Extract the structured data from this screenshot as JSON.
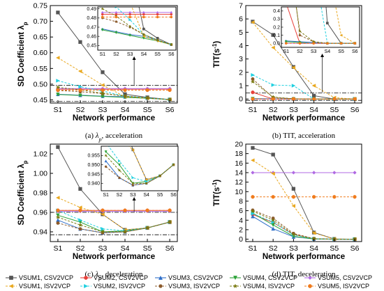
{
  "series_styles": [
    {
      "name": "VSUM1, CSV2VCP",
      "color": "#555555",
      "marker": "square",
      "dash": false
    },
    {
      "name": "VSUM2, CSV2VCP",
      "color": "#e8413b",
      "marker": "circle",
      "dash": false
    },
    {
      "name": "VSUM3, CSV2VCP",
      "color": "#2f6fc9",
      "marker": "triangle-up",
      "dash": false
    },
    {
      "name": "VSUM4, CSV2VCP",
      "color": "#2ea33a",
      "marker": "triangle-down",
      "dash": false
    },
    {
      "name": "VSUM5, CSV2VCP",
      "color": "#b06ae3",
      "marker": "diamond",
      "dash": false
    },
    {
      "name": "VSUM1, ISV2VCP",
      "color": "#e9a81e",
      "marker": "triangle-left",
      "dash": true
    },
    {
      "name": "VSUM2, ISV2VCP",
      "color": "#1fd0e0",
      "marker": "triangle-right",
      "dash": true
    },
    {
      "name": "VSUM3, ISV2VCP",
      "color": "#8b5a2b",
      "marker": "hexagon",
      "dash": true
    },
    {
      "name": "VSUM4, ISV2VCP",
      "color": "#7a7a10",
      "marker": "star",
      "dash": true
    },
    {
      "name": "VSUM5, ISV2VCP",
      "color": "#f07b1c",
      "marker": "circle",
      "dash": true
    }
  ],
  "chart_data": [
    {
      "type": "line",
      "caption_letter": "(a)",
      "caption_symbol": "λ",
      "caption_sub": "p",
      "caption_text": ", acceleration",
      "ylabel": "SD Coefficient λ",
      "ylabel_sub": "p",
      "xlabel": "Network performance",
      "categories": [
        "S1",
        "S2",
        "S3",
        "S4",
        "S5",
        "S6"
      ],
      "ylim": [
        0.44,
        0.75
      ],
      "yticks": [
        "0.45",
        "0.50",
        "0.55",
        "0.60",
        "0.65",
        "0.70",
        "0.75"
      ],
      "series": [
        [
          0.728,
          0.634,
          0.538,
          0.468,
          0.458,
          0.451
        ],
        [
          0.484,
          0.484,
          0.484,
          0.484,
          0.484,
          0.484
        ],
        [
          0.468,
          0.465,
          0.462,
          0.46,
          0.456,
          0.451
        ],
        [
          0.467,
          0.464,
          0.461,
          0.458,
          0.455,
          0.451
        ],
        [
          0.486,
          0.486,
          0.486,
          0.486,
          0.486,
          0.486
        ],
        [
          0.584,
          0.541,
          0.497,
          0.46,
          0.455,
          0.451
        ],
        [
          0.511,
          0.492,
          0.478,
          0.462,
          0.456,
          0.451
        ],
        [
          0.48,
          0.476,
          0.47,
          0.462,
          0.456,
          0.451
        ],
        [
          0.49,
          0.482,
          0.471,
          0.462,
          0.456,
          0.451
        ],
        [
          0.481,
          0.481,
          0.481,
          0.481,
          0.481,
          0.481
        ]
      ],
      "reference_lines": [
        0.496,
        0.445
      ],
      "inset": {
        "ylim": [
          0.445,
          0.492
        ],
        "yticks": [
          "0.45",
          "0.46",
          "0.47",
          "0.48",
          "0.49"
        ],
        "categories": [
          "S1",
          "S2",
          "S3",
          "S4",
          "S5",
          "S6"
        ]
      }
    },
    {
      "type": "line",
      "caption_letter": "(b)",
      "caption_text": "TIT, acceleration",
      "ylabel": "TIT(s",
      "ylabel_sup": "-1",
      "ylabel_end": ")",
      "xlabel": "Network performance",
      "categories": [
        "S1",
        "S2",
        "S3",
        "S4",
        "S5",
        "S6"
      ],
      "ylim": [
        -0.3,
        7.0
      ],
      "yticks": [
        "0",
        "1",
        "2",
        "3",
        "4",
        "5",
        "6",
        "7"
      ],
      "series": [
        [
          5.8,
          4.8,
          2.4,
          0.25,
          0.0,
          0.0
        ],
        [
          0.5,
          0.0,
          0.0,
          0.0,
          0.0,
          0.0
        ],
        [
          0.03,
          0.02,
          0.01,
          0.0,
          0.0,
          0.0
        ],
        [
          0.02,
          0.01,
          0.0,
          0.0,
          0.0,
          0.0
        ],
        [
          0.0,
          0.0,
          0.0,
          0.0,
          0.0,
          0.0
        ],
        [
          5.75,
          3.85,
          2.35,
          1.0,
          0.1,
          0.0
        ],
        [
          1.8,
          1.05,
          1.0,
          0.0,
          0.0,
          0.0
        ],
        [
          1.5,
          0.1,
          0.02,
          0.0,
          0.0,
          0.0
        ],
        [
          1.3,
          0.15,
          0.02,
          0.0,
          0.0,
          0.0
        ],
        [
          0.0,
          0.0,
          0.0,
          0.0,
          0.0,
          0.0
        ]
      ],
      "reference_lines": [
        0.45,
        -0.1
      ],
      "inset": {
        "ylim": [
          -0.05,
          0.45
        ],
        "yticks": [
          "0.0",
          "0.1",
          "0.2",
          "0.3",
          "0.4"
        ],
        "categories": [
          "S1",
          "S2",
          "S3",
          "S4",
          "S5",
          "S6"
        ]
      }
    },
    {
      "type": "line",
      "caption_letter": "(c)",
      "caption_symbol": "λ",
      "caption_sub": "p",
      "caption_text": ", deceleration",
      "ylabel": "SD Coefficient λ",
      "ylabel_sub": "p",
      "xlabel": "Network performance",
      "categories": [
        "S1",
        "S2",
        "S3",
        "S4",
        "S5",
        "S6"
      ],
      "ylim": [
        0.93,
        1.03
      ],
      "yticks": [
        "0.94",
        "0.96",
        "0.98",
        "1.00",
        "1.02"
      ],
      "series": [
        [
          1.027,
          0.984,
          0.958,
          0.942,
          0.944,
          0.95
        ],
        [
          0.962,
          0.962,
          0.962,
          0.962,
          0.962,
          0.962
        ],
        [
          0.952,
          0.943,
          0.939,
          0.94,
          0.944,
          0.95
        ],
        [
          0.957,
          0.95,
          0.94,
          0.941,
          0.944,
          0.95
        ],
        [
          0.961,
          0.961,
          0.961,
          0.961,
          0.961,
          0.961
        ],
        [
          0.975,
          0.965,
          0.958,
          0.942,
          0.944,
          0.95
        ],
        [
          0.962,
          0.952,
          0.943,
          0.941,
          0.944,
          0.95
        ],
        [
          0.949,
          0.943,
          0.939,
          0.94,
          0.944,
          0.95
        ],
        [
          0.955,
          0.947,
          0.94,
          0.94,
          0.944,
          0.95
        ],
        [
          0.962,
          0.962,
          0.962,
          0.962,
          0.962,
          0.962
        ]
      ],
      "reference_lines": [
        0.96,
        0.937
      ],
      "inset": {
        "ylim": [
          0.936,
          0.96
        ],
        "yticks": [
          "0.940",
          "0.945",
          "0.950",
          "0.955"
        ],
        "categories": [
          "S1",
          "S2",
          "S3",
          "S4",
          "S5",
          "S6"
        ]
      }
    },
    {
      "type": "line",
      "caption_letter": "(d)",
      "caption_text": "TIT, deceleration",
      "ylabel": "TIT(s",
      "ylabel_sup": "-1",
      "ylabel_end": ")",
      "xlabel": "Network performance",
      "categories": [
        "S1",
        "S2",
        "S3",
        "S4",
        "S5",
        "S6"
      ],
      "ylim": [
        -0.5,
        20
      ],
      "yticks": [
        "0",
        "2",
        "4",
        "6",
        "8",
        "10",
        "12",
        "14",
        "16",
        "18",
        "20"
      ],
      "series": [
        [
          19.2,
          17.8,
          10.6,
          1.4,
          0.05,
          0.0
        ],
        [
          5.2,
          3.5,
          1.0,
          0.1,
          0.0,
          0.0
        ],
        [
          4.8,
          2.2,
          0.5,
          0.05,
          0.0,
          0.0
        ],
        [
          5.5,
          3.0,
          0.6,
          0.05,
          0.0,
          0.0
        ],
        [
          14.0,
          14.0,
          14.0,
          14.0,
          14.0,
          14.0
        ],
        [
          16.6,
          13.8,
          7.0,
          1.3,
          0.05,
          0.0
        ],
        [
          5.4,
          3.6,
          0.9,
          0.1,
          0.0,
          0.0
        ],
        [
          6.1,
          4.4,
          1.2,
          0.1,
          0.0,
          0.0
        ],
        [
          5.9,
          4.0,
          1.0,
          0.1,
          0.0,
          0.0
        ],
        [
          8.9,
          8.9,
          8.9,
          8.9,
          8.9,
          8.9
        ]
      ]
    }
  ]
}
